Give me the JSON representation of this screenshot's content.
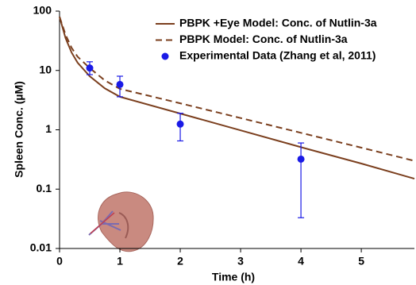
{
  "chart_data": {
    "type": "line",
    "x_label": "Time (h)",
    "y_label": "Spleen Conc. (µM)",
    "xlim": [
      0,
      5.88
    ],
    "xticks": [
      0,
      1,
      2,
      3,
      4,
      5
    ],
    "ylim": [
      0.01,
      100
    ],
    "yticks": [
      100,
      10,
      1,
      0.1,
      0.01
    ],
    "log_y": true,
    "legend": "upper right",
    "series": [
      {
        "name": "PBPK +Eye Model: Conc. of Nutlin-3a",
        "type": "line",
        "dashed": false,
        "color": "#7b3f1e",
        "x": [
          0,
          0.1,
          0.2,
          0.3,
          0.5,
          0.75,
          1,
          2,
          3,
          4,
          5,
          5.88
        ],
        "values": [
          80,
          35,
          20,
          13.5,
          8,
          5,
          3.6,
          1.88,
          0.98,
          0.51,
          0.27,
          0.15
        ]
      },
      {
        "name": "PBPK Model: Conc. of Nutlin-3a",
        "type": "line",
        "dashed": true,
        "color": "#7b3f1e",
        "x": [
          0,
          0.1,
          0.2,
          0.3,
          0.5,
          0.75,
          1,
          2,
          3,
          4,
          5,
          5.88
        ],
        "values": [
          80,
          40,
          24,
          17,
          11,
          6.8,
          4.9,
          2.8,
          1.58,
          0.89,
          0.5,
          0.3
        ]
      },
      {
        "name": "Experimental Data (Zhang et al, 2011)",
        "type": "scatter",
        "color": "#1a1ae6",
        "x": [
          0.5,
          1,
          2,
          4
        ],
        "values": [
          11,
          5.8,
          1.25,
          0.32
        ],
        "lower": [
          8.5,
          3.6,
          0.65,
          0.033
        ],
        "upper": [
          14,
          8,
          1.9,
          0.6
        ]
      }
    ]
  }
}
